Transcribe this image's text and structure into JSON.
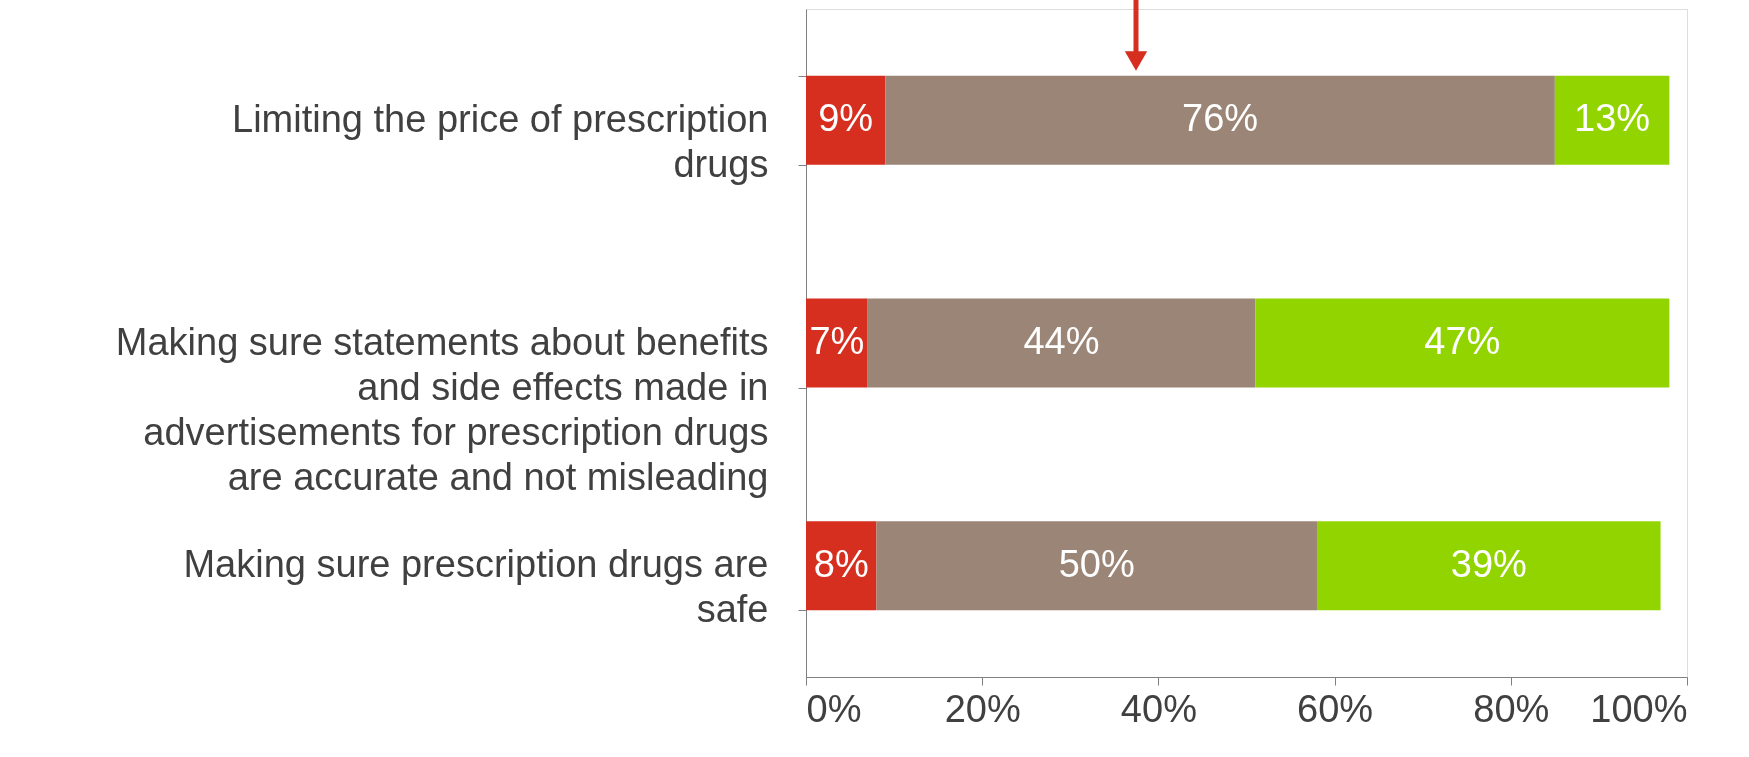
{
  "chart_data": {
    "type": "bar",
    "orientation": "horizontal",
    "stacked": true,
    "categories": [
      "Limiting the price of prescription drugs",
      "Making sure statements about benefits and side effects made in advertisements for prescription drugs are accurate and not misleading",
      "Making sure prescription drugs are safe"
    ],
    "series": [
      {
        "color": "#d62e1f",
        "values": [
          9,
          7,
          8
        ],
        "value_labels": [
          "9%",
          "7%",
          "8%"
        ]
      },
      {
        "color": "#9b8577",
        "values": [
          76,
          44,
          50
        ],
        "value_labels": [
          "76%",
          "44%",
          "50%"
        ]
      },
      {
        "color": "#92d400",
        "values": [
          13,
          47,
          39
        ],
        "value_labels": [
          "13%",
          "47%",
          "39%"
        ]
      }
    ],
    "xlim": [
      0,
      100
    ],
    "xticks": [
      {
        "value": 0,
        "label": "0%"
      },
      {
        "value": 20,
        "label": "20%"
      },
      {
        "value": 40,
        "label": "40%"
      },
      {
        "value": 60,
        "label": "60%"
      },
      {
        "value": 80,
        "label": "80%"
      },
      {
        "value": 100,
        "label": "100%"
      }
    ]
  }
}
